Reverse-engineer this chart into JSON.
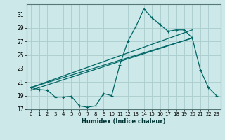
{
  "xlabel": "Humidex (Indice chaleur)",
  "bg_color": "#cce8e8",
  "grid_color": "#aacccc",
  "line_color": "#006666",
  "xlim": [
    -0.5,
    23.5
  ],
  "ylim": [
    17,
    32.5
  ],
  "xticks": [
    0,
    1,
    2,
    3,
    4,
    5,
    6,
    7,
    8,
    9,
    10,
    11,
    12,
    13,
    14,
    15,
    16,
    17,
    18,
    19,
    20,
    21,
    22,
    23
  ],
  "yticks": [
    17,
    19,
    21,
    23,
    25,
    27,
    29,
    31
  ],
  "curve1_x": [
    0,
    1,
    2,
    3,
    4,
    5,
    6,
    7,
    8,
    9,
    10,
    11,
    12,
    13,
    14,
    15,
    16,
    17,
    18,
    19,
    20,
    21,
    22,
    23
  ],
  "curve1_y": [
    20.2,
    19.9,
    19.8,
    18.8,
    18.8,
    18.9,
    17.5,
    17.3,
    17.5,
    19.3,
    19.0,
    23.5,
    27.0,
    29.2,
    31.8,
    30.5,
    29.5,
    28.5,
    28.7,
    28.7,
    27.5,
    22.8,
    20.2,
    19.0
  ],
  "line1_x": [
    0,
    20
  ],
  "line1_y": [
    20.2,
    27.5
  ],
  "line2_x": [
    0,
    20
  ],
  "line2_y": [
    20.2,
    28.7
  ],
  "line3_x": [
    0,
    20
  ],
  "line3_y": [
    19.8,
    27.5
  ]
}
